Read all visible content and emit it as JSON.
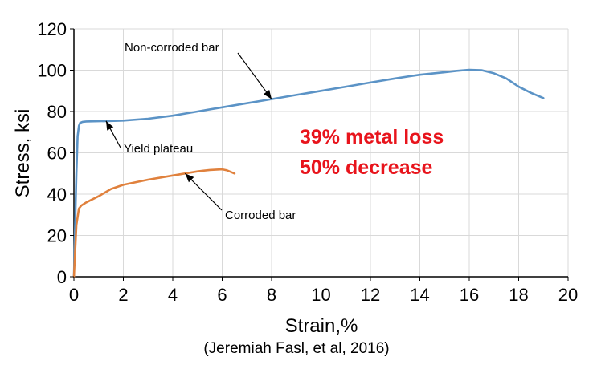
{
  "chart_data": {
    "type": "line",
    "xlabel": "Strain,%",
    "ylabel": "Stress, ksi",
    "xlim": [
      0,
      20
    ],
    "ylim": [
      0,
      120
    ],
    "xticks": [
      0,
      2,
      4,
      6,
      8,
      10,
      12,
      14,
      16,
      18,
      20
    ],
    "yticks": [
      0,
      20,
      40,
      60,
      80,
      100,
      120
    ],
    "grid": true,
    "colors": {
      "non_corroded": "#5b93c6",
      "corroded": "#e0813d",
      "callout": "#e8141c",
      "grid": "#d9d9d9"
    },
    "series": [
      {
        "name": "Non-corroded bar",
        "x": [
          0,
          0.05,
          0.1,
          0.15,
          0.2,
          0.25,
          0.35,
          0.5,
          1,
          1.5,
          2,
          3,
          4,
          5,
          6,
          7,
          8,
          9,
          10,
          11,
          12,
          13,
          14,
          15,
          15.5,
          16,
          16.5,
          17,
          17.5,
          18,
          18.5,
          19
        ],
        "y": [
          0,
          25,
          50,
          68,
          73,
          74.5,
          75,
          75.2,
          75.3,
          75.4,
          75.6,
          76.5,
          78,
          80,
          82,
          84,
          86,
          88,
          90,
          92,
          94,
          96,
          97.8,
          99,
          99.7,
          100.2,
          100,
          98.5,
          96,
          92,
          89,
          86.5
        ]
      },
      {
        "name": "Corroded bar",
        "x": [
          0,
          0.05,
          0.1,
          0.2,
          0.3,
          0.5,
          1,
          1.5,
          2,
          3,
          4,
          5,
          5.5,
          6,
          6.2,
          6.5
        ],
        "y": [
          0,
          12,
          25,
          33,
          34.5,
          36,
          39,
          42.5,
          44.5,
          47,
          49,
          51,
          51.7,
          52,
          51.5,
          50
        ]
      }
    ],
    "annotations": [
      {
        "text": "Non-corroded bar",
        "target_x": 8,
        "target_y": 86
      },
      {
        "text": "Yield plateau",
        "target_x": 1.3,
        "target_y": 75.4
      },
      {
        "text": "Corroded bar",
        "target_x": 4.5,
        "target_y": 50
      }
    ],
    "callout_lines": [
      "39% metal loss",
      "50% decrease"
    ]
  },
  "citation": "(Jeremiah Fasl, et al, 2016)"
}
